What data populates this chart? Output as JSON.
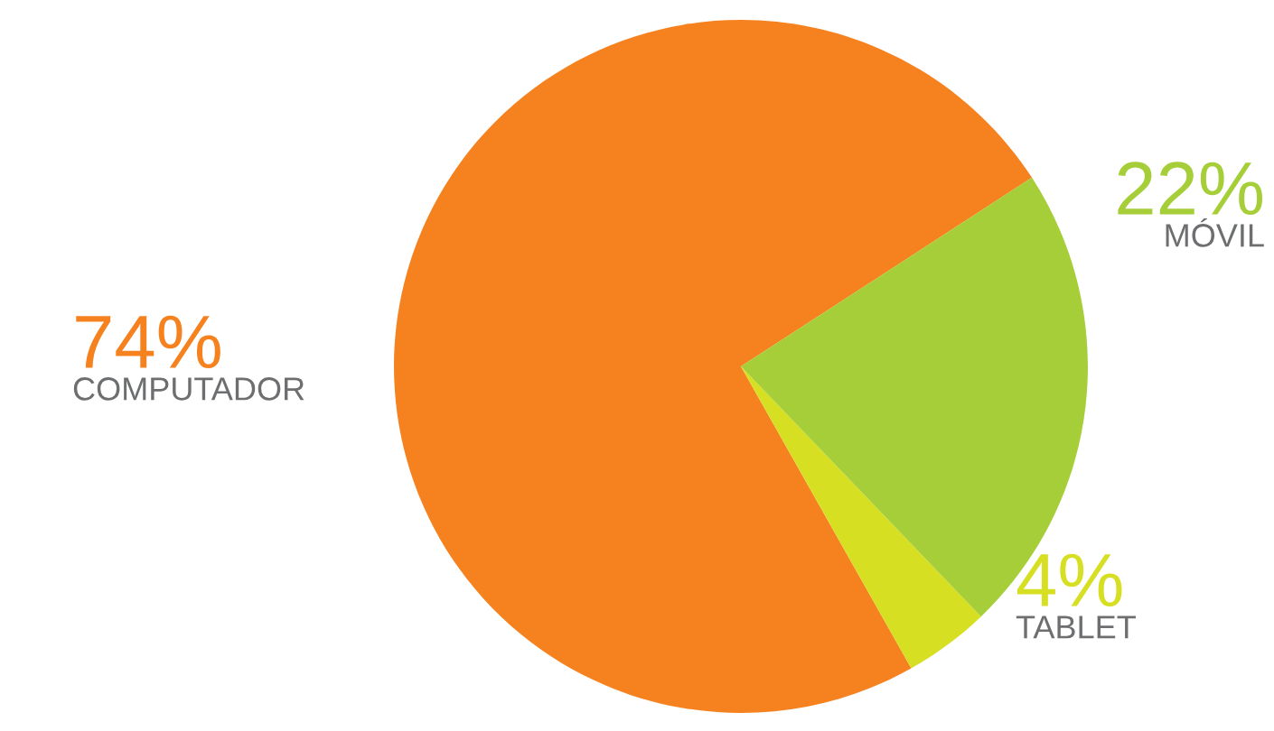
{
  "chart_data": {
    "type": "pie",
    "categories": [
      "COMPUTADOR",
      "TABLET",
      "MÓVIL"
    ],
    "values": [
      74,
      4,
      22
    ],
    "value_labels": [
      "74%",
      "4%",
      "22%"
    ],
    "colors": [
      "#f5821f",
      "#d7df23",
      "#a6ce39"
    ],
    "legend": false
  }
}
